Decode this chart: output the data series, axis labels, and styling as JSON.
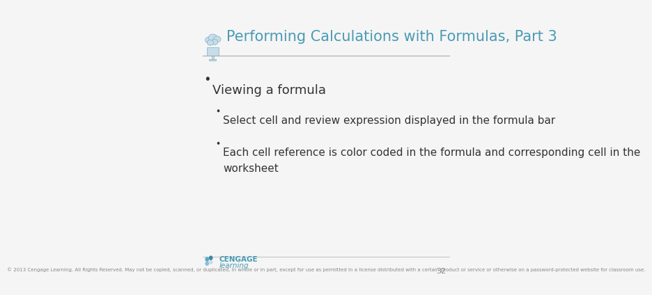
{
  "title": "Performing Calculations with Formulas, Part 3",
  "title_color": "#4a9ab5",
  "title_fontsize": 15,
  "bg_color": "#f5f5f5",
  "bullet1": "Viewing a formula",
  "bullet1_fontsize": 13,
  "bullet1_color": "#333333",
  "sub_bullet1": "Select cell and review expression displayed in the formula bar",
  "sub_bullet2": "Each cell reference is color coded in the formula and corresponding cell in the\nworksheet",
  "sub_bullet_fontsize": 11,
  "sub_bullet_color": "#333333",
  "footer_text": "© 2013 Cengage Learning. All Rights Reserved. May not be copied, scanned, or duplicated, in whole or in part, except for use as permitted in a license distributed with a certain product or service or otherwise on a password-protected website for classroom use.",
  "footer_fontsize": 5,
  "footer_color": "#888888",
  "page_number": "32",
  "separator_color": "#aaaaaa",
  "cengage_text_color": "#4a9ab5",
  "cloud_color": "#c8dde8",
  "cloud_outline": "#7ab0c8"
}
